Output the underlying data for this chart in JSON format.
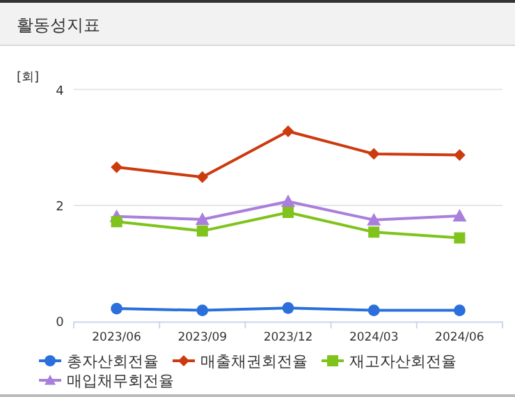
{
  "chart_data": {
    "type": "line",
    "title": "활동성지표",
    "ylabel": "[회]",
    "categories": [
      "2023/06",
      "2023/09",
      "2023/12",
      "2024/03",
      "2024/06"
    ],
    "ylim": [
      0,
      4
    ],
    "yticks": [
      0,
      2,
      4
    ],
    "grid": "y",
    "legend": "bottom",
    "series": [
      {
        "name": "총자산회전율",
        "color": "#2a6fdb",
        "marker": "circle",
        "values": [
          0.22,
          0.19,
          0.23,
          0.19,
          0.19
        ]
      },
      {
        "name": "매출채권회전율",
        "color": "#cc3a0e",
        "marker": "diamond",
        "values": [
          2.66,
          2.49,
          3.28,
          2.89,
          2.87
        ]
      },
      {
        "name": "재고자산회전율",
        "color": "#7fc31c",
        "marker": "square",
        "values": [
          1.72,
          1.56,
          1.88,
          1.54,
          1.44
        ]
      },
      {
        "name": "매입채무회전율",
        "color": "#a97fdb",
        "marker": "triangle",
        "values": [
          1.81,
          1.76,
          2.07,
          1.75,
          1.82
        ]
      }
    ]
  }
}
